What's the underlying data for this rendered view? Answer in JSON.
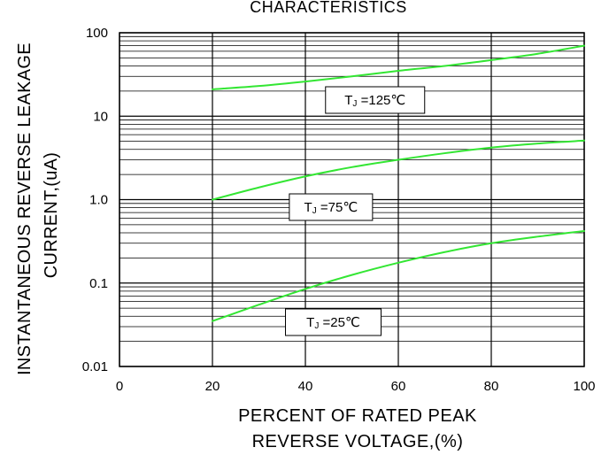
{
  "chart_data": {
    "type": "line",
    "title": "CHARACTERISTICS",
    "xlabel": [
      "PERCENT OF RATED PEAK",
      "REVERSE VOLTAGE,(%)"
    ],
    "ylabel": [
      "INSTANTANEOUS REVERSE LEAKAGE",
      "CURRENT,(uA)"
    ],
    "xlim": [
      0,
      100
    ],
    "ylim": [
      0.01,
      100
    ],
    "yscale": "log",
    "grid": true,
    "x_ticks": [
      0,
      20,
      40,
      60,
      80,
      100
    ],
    "x_tick_labels": [
      "0",
      "20",
      "40",
      "60",
      "80",
      "100"
    ],
    "y_ticks": [
      0.01,
      0.1,
      1,
      10,
      100
    ],
    "y_tick_labels": [
      "0.01",
      "0.1",
      "1.0",
      "10",
      "100"
    ],
    "line_color": "#33e633",
    "series": [
      {
        "name": "TJ=125℃",
        "label_sub": "J",
        "label_suffix": "=125℃",
        "x": [
          20,
          30,
          40,
          50,
          60,
          70,
          80,
          90,
          100
        ],
        "y": [
          21,
          23,
          26,
          30,
          35,
          40,
          47,
          56,
          70
        ]
      },
      {
        "name": "TJ=75℃",
        "label_sub": "J",
        "label_suffix": "=75℃",
        "x": [
          20,
          30,
          40,
          50,
          60,
          70,
          80,
          90,
          100
        ],
        "y": [
          1.0,
          1.4,
          1.9,
          2.45,
          3.0,
          3.6,
          4.2,
          4.7,
          5.1
        ]
      },
      {
        "name": "TJ=25℃",
        "label_sub": "J",
        "label_suffix": "=25℃",
        "x": [
          20,
          30,
          40,
          50,
          60,
          70,
          80,
          90,
          100
        ],
        "y": [
          0.035,
          0.055,
          0.085,
          0.125,
          0.175,
          0.235,
          0.3,
          0.36,
          0.42
        ]
      }
    ]
  }
}
